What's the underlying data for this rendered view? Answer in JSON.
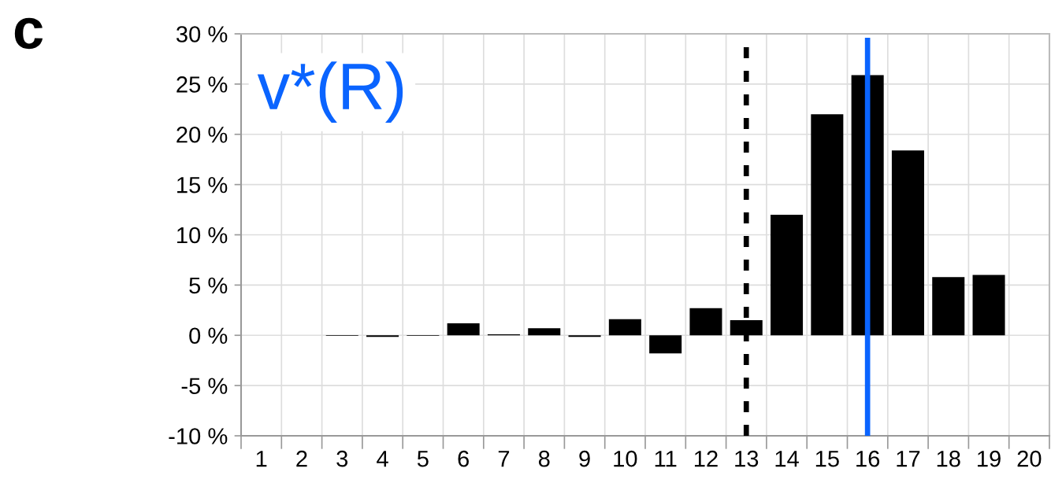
{
  "chart_data": {
    "type": "bar",
    "categories": [
      "1",
      "2",
      "3",
      "4",
      "5",
      "6",
      "7",
      "8",
      "9",
      "10",
      "11",
      "12",
      "13",
      "14",
      "15",
      "16",
      "17",
      "18",
      "19",
      "20"
    ],
    "values": [
      null,
      null,
      -0.05,
      -0.15,
      -0.05,
      1.2,
      0.1,
      0.7,
      -0.15,
      1.6,
      -1.8,
      2.7,
      1.5,
      12.0,
      22.0,
      25.9,
      18.4,
      5.8,
      6.0,
      null
    ],
    "color": "#000000",
    "ylim": [
      -10,
      30
    ],
    "yticks": [
      {
        "value": -10,
        "label": "-10 %"
      },
      {
        "value": -5,
        "label": "-5 %"
      },
      {
        "value": 0,
        "label": "0 %"
      },
      {
        "value": 5,
        "label": "5 %"
      },
      {
        "value": 10,
        "label": "10 %"
      },
      {
        "value": 15,
        "label": "15 %"
      },
      {
        "value": 20,
        "label": "20 %"
      },
      {
        "value": 25,
        "label": "25 %"
      },
      {
        "value": 30,
        "label": "30 %"
      }
    ],
    "grid": true,
    "ref_lines": [
      {
        "axis": "x",
        "value": "13",
        "color": "#000000",
        "line_style": "dashed"
      },
      {
        "axis": "x",
        "value": "16",
        "color": "#0a64ff",
        "line_style": "solid",
        "label": "v*(R)"
      }
    ],
    "annotations": [
      "c"
    ]
  }
}
